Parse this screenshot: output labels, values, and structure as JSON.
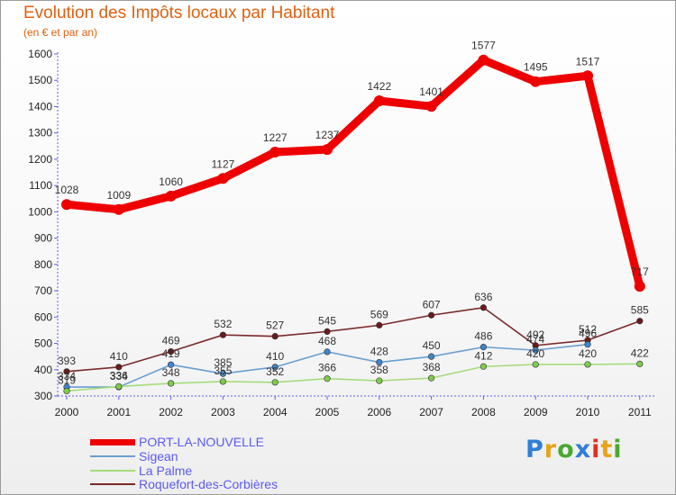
{
  "title": "Evolution des Impôts locaux par Habitant",
  "subtitle": "(en € et par an)",
  "logo": {
    "text": "Proxiti",
    "colors": [
      "#2f7fd6",
      "#e8a317",
      "#4aa832",
      "#2f7fd6",
      "#e0301e",
      "#e8a317",
      "#4aa832"
    ]
  },
  "chart_data": {
    "type": "line",
    "x": [
      "2000",
      "2001",
      "2002",
      "2003",
      "2004",
      "2005",
      "2006",
      "2007",
      "2008",
      "2009",
      "2010",
      "2011"
    ],
    "y_ticks": [
      "300",
      "400",
      "500",
      "600",
      "700",
      "800",
      "900",
      "1000",
      "1100",
      "1200",
      "1300",
      "1400",
      "1500",
      "1600"
    ],
    "ylim": [
      300,
      1600
    ],
    "grid": false,
    "legend_position": "bottom-left",
    "series": [
      {
        "name": "PORT-LA-NOUVELLE",
        "color": "#ee0000",
        "point_color": "#ee0000",
        "values": [
          1028,
          1009,
          1060,
          1127,
          1227,
          1237,
          1422,
          1401,
          1577,
          1495,
          1517,
          717
        ],
        "labels": [
          "1028",
          "1009",
          "1060",
          "1127",
          "1227",
          "1237",
          "1422",
          "1401",
          "1577",
          "1495",
          "1517",
          "717"
        ]
      },
      {
        "name": "Sigean",
        "color": "#6a9ed0",
        "point_color": "#3f86c9",
        "values": [
          334,
          334,
          419,
          385,
          410,
          468,
          428,
          450,
          486,
          474,
          496,
          null
        ],
        "labels": [
          "334",
          "334",
          "419",
          "385",
          "410",
          "468",
          "428",
          "450",
          "486",
          "474",
          "496",
          ""
        ]
      },
      {
        "name": "La Palme",
        "color": "#a6dc7c",
        "point_color": "#7ccc4c",
        "values": [
          319,
          336,
          348,
          355,
          352,
          366,
          358,
          368,
          412,
          420,
          420,
          422
        ],
        "labels": [
          "319",
          "336",
          "348",
          "355",
          "352",
          "366",
          "358",
          "368",
          "412",
          "420",
          "420",
          "422"
        ]
      },
      {
        "name": "Roquefort-des-Corbières",
        "color": "#7a2a2a",
        "point_color": "#6b1a1a",
        "values": [
          393,
          410,
          469,
          532,
          527,
          545,
          569,
          607,
          636,
          492,
          512,
          585
        ],
        "labels": [
          "393",
          "410",
          "469",
          "532",
          "527",
          "545",
          "569",
          "607",
          "636",
          "492",
          "512",
          "585"
        ]
      }
    ]
  }
}
